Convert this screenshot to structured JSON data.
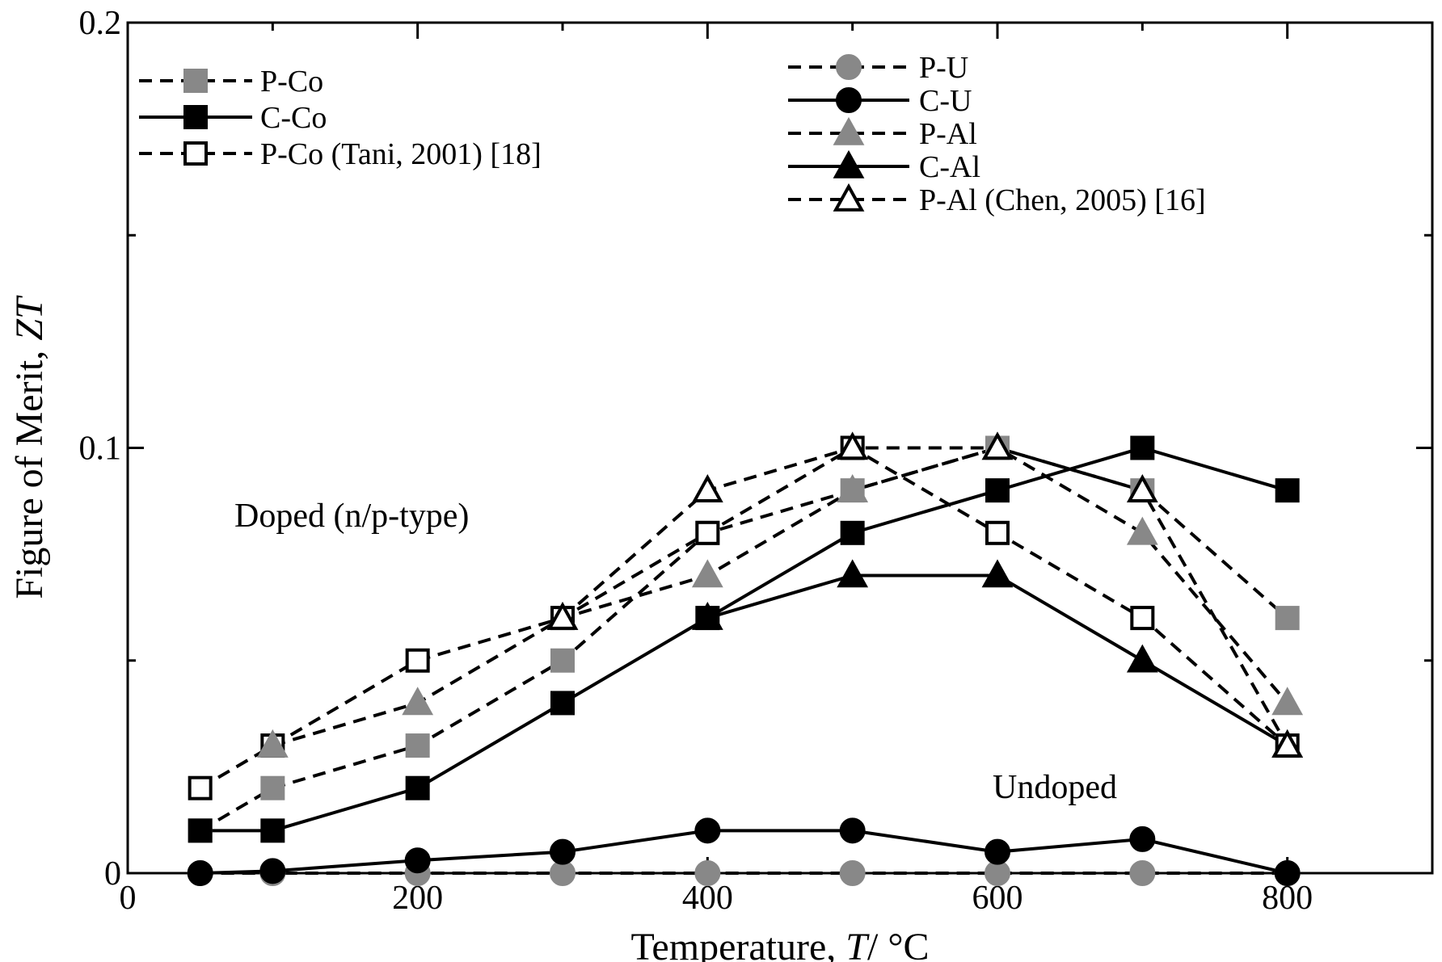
{
  "chart_data": {
    "type": "line",
    "title": "",
    "xlabel": "Temperature, ",
    "xlabel_italic": "T",
    "xlabel_unit": "/ °C",
    "ylabel": "Figure of Merit, ",
    "ylabel_italic": "ZT",
    "xlim": [
      0,
      900
    ],
    "ylim": [
      0,
      0.2
    ],
    "x_ticks": [
      0,
      200,
      400,
      600,
      800
    ],
    "x_tick_labels": [
      "0",
      "200",
      "400",
      "600",
      "800"
    ],
    "y_ticks": [
      0,
      0.1,
      0.2
    ],
    "y_tick_labels": [
      "0",
      "0.1",
      "0.2"
    ],
    "annotations": [
      "Doped (n/p-type)",
      "Undoped"
    ],
    "series": [
      {
        "name": "P-Co",
        "marker": "square",
        "fill": "#888888",
        "dash": true,
        "x": [
          50,
          100,
          200,
          300,
          400,
          500,
          600,
          700,
          800
        ],
        "y": [
          0.01,
          0.02,
          0.03,
          0.05,
          0.08,
          0.09,
          0.1,
          0.09,
          0.06
        ]
      },
      {
        "name": "C-Co",
        "marker": "square",
        "fill": "#000000",
        "dash": false,
        "x": [
          50,
          100,
          200,
          300,
          400,
          500,
          600,
          700,
          800
        ],
        "y": [
          0.01,
          0.01,
          0.02,
          0.04,
          0.06,
          0.08,
          0.09,
          0.1,
          0.09
        ]
      },
      {
        "name": "P-Co (Tani, 2001) [18]",
        "marker": "square",
        "fill": "#ffffff",
        "dash": true,
        "x": [
          50,
          100,
          200,
          300,
          400,
          500,
          600,
          700,
          800
        ],
        "y": [
          0.02,
          0.03,
          0.05,
          0.06,
          0.08,
          0.1,
          0.08,
          0.06,
          0.03
        ]
      },
      {
        "name": "P-U",
        "marker": "circle",
        "fill": "#888888",
        "dash": true,
        "x": [
          50,
          100,
          200,
          300,
          400,
          500,
          600,
          700,
          800
        ],
        "y": [
          0,
          0,
          0,
          0,
          0,
          0,
          0,
          0,
          0
        ]
      },
      {
        "name": "C-U",
        "marker": "circle",
        "fill": "#000000",
        "dash": false,
        "x": [
          50,
          100,
          200,
          300,
          400,
          500,
          600,
          700,
          800
        ],
        "y": [
          0,
          0.0005,
          0.003,
          0.005,
          0.01,
          0.01,
          0.005,
          0.008,
          0
        ]
      },
      {
        "name": "P-Al",
        "marker": "triangle",
        "fill": "#888888",
        "dash": true,
        "x": [
          100,
          200,
          300,
          400,
          500,
          600,
          700,
          800
        ],
        "y": [
          0.03,
          0.04,
          0.06,
          0.07,
          0.09,
          0.1,
          0.08,
          0.04
        ]
      },
      {
        "name": "C-Al",
        "marker": "triangle",
        "fill": "#000000",
        "dash": false,
        "x": [
          400,
          500,
          600,
          700,
          800
        ],
        "y": [
          0.06,
          0.07,
          0.07,
          0.05,
          0.03
        ]
      },
      {
        "name": "P-Al (Chen, 2005) [16]",
        "marker": "triangle",
        "fill": "#ffffff",
        "dash": true,
        "x": [
          300,
          400,
          500,
          600,
          700,
          800
        ],
        "y": [
          0.06,
          0.09,
          0.1,
          0.1,
          0.09,
          0.03
        ]
      }
    ],
    "legend_groups": [
      {
        "position": "top-left",
        "series": [
          "P-Co",
          "C-Co",
          "P-Co (Tani, 2001) [18]"
        ]
      },
      {
        "position": "top-center",
        "series": [
          "P-U",
          "C-U",
          "P-Al",
          "C-Al",
          "P-Al (Chen, 2005) [16]"
        ]
      }
    ],
    "grid": false
  }
}
